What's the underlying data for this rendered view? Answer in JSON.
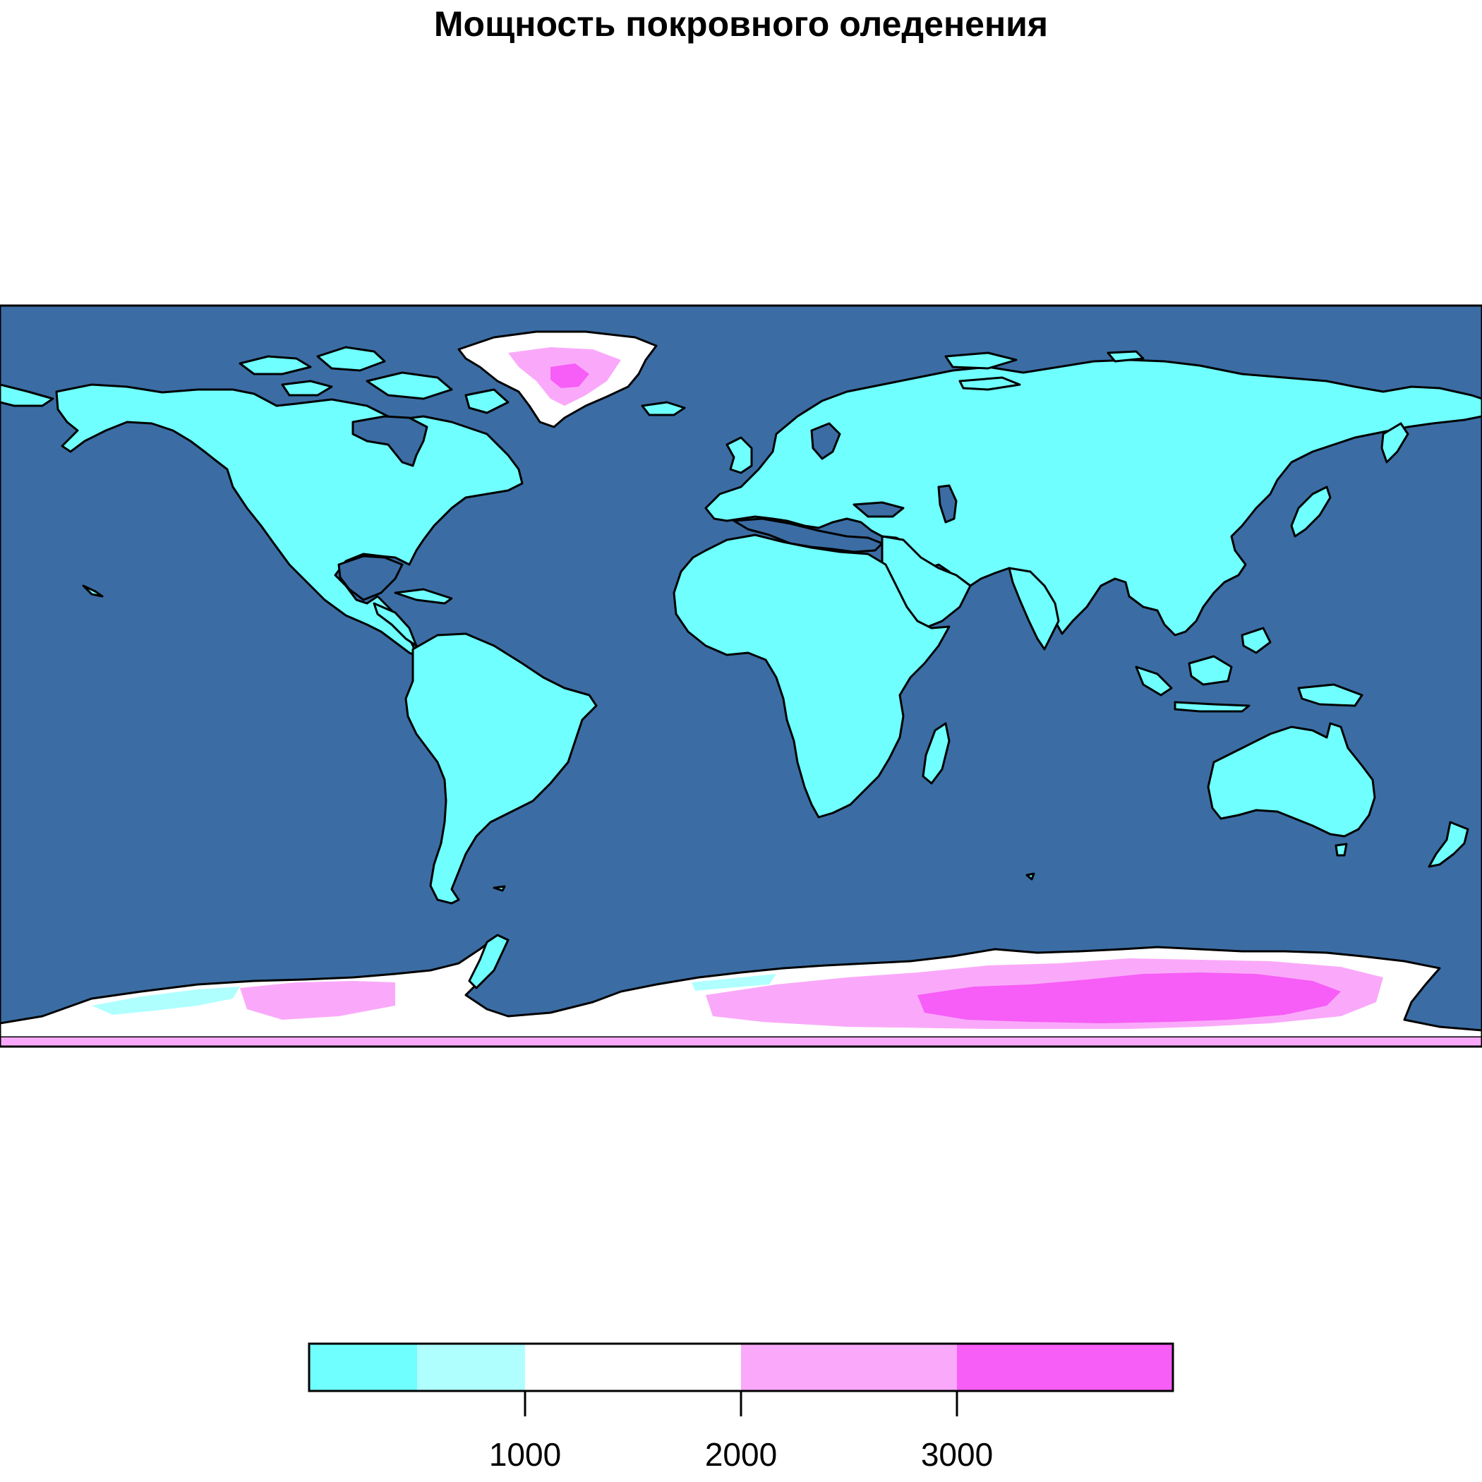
{
  "title": "Мощность покровного оледенения",
  "colors": {
    "ocean": "#3b6da4",
    "outline": "#000000",
    "class_1": "#70ffff",
    "class_2": "#b0ffff",
    "class_3": "#ffffff",
    "class_4": "#faa9fa",
    "class_5": "#f75df7"
  },
  "legend": {
    "breaks": [
      0,
      500,
      1000,
      2000,
      3000,
      4000
    ],
    "colors": [
      "#70ffff",
      "#b0ffff",
      "#ffffff",
      "#faa9fa",
      "#f75df7"
    ],
    "tick_values": [
      1000,
      2000,
      3000
    ],
    "tick_labels": [
      "1000",
      "2000",
      "3000"
    ]
  }
}
